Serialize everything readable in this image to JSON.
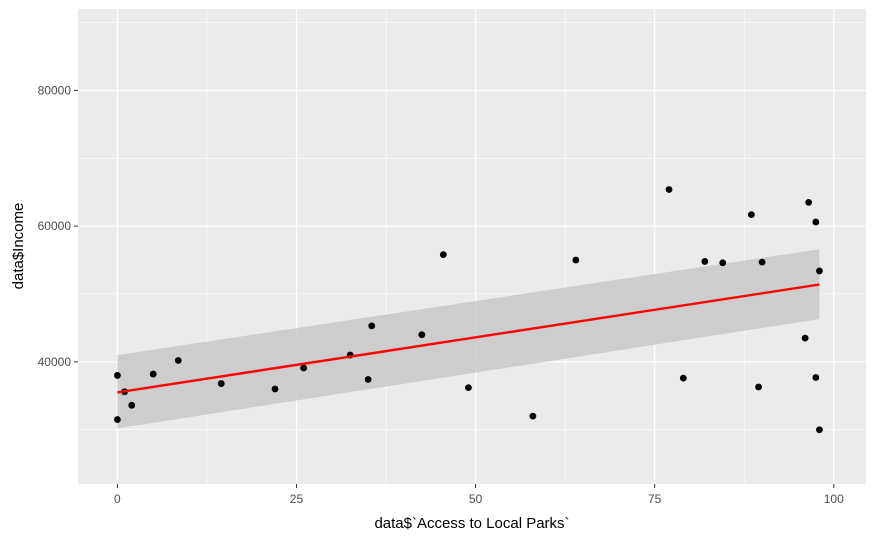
{
  "chart_data": {
    "type": "scatter",
    "xlabel": "data$`Access to Local Parks`",
    "ylabel": "data$Income",
    "xlim": [
      -5.5,
      104.5
    ],
    "ylim": [
      22000,
      92000
    ],
    "x_ticks": [
      0,
      25,
      50,
      75,
      100
    ],
    "x_tick_labels": [
      "0",
      "25",
      "50",
      "75",
      "100"
    ],
    "y_ticks": [
      40000,
      60000,
      80000
    ],
    "y_tick_labels": [
      "40000",
      "60000",
      "80000"
    ],
    "grid": true,
    "series": [
      {
        "points": [
          {
            "x": 0,
            "y": 31500
          },
          {
            "x": 0,
            "y": 38000
          },
          {
            "x": 1,
            "y": 35600
          },
          {
            "x": 2,
            "y": 33600
          },
          {
            "x": 5,
            "y": 38200
          },
          {
            "x": 8.5,
            "y": 40200
          },
          {
            "x": 14.5,
            "y": 36800
          },
          {
            "x": 22,
            "y": 36000
          },
          {
            "x": 26,
            "y": 39100
          },
          {
            "x": 32.5,
            "y": 41000
          },
          {
            "x": 35,
            "y": 37400
          },
          {
            "x": 35.5,
            "y": 45300
          },
          {
            "x": 42.5,
            "y": 44000
          },
          {
            "x": 45.5,
            "y": 55800
          },
          {
            "x": 49,
            "y": 36200
          },
          {
            "x": 58,
            "y": 32000
          },
          {
            "x": 64,
            "y": 55000
          },
          {
            "x": 77,
            "y": 65400
          },
          {
            "x": 79,
            "y": 37600
          },
          {
            "x": 82,
            "y": 54800
          },
          {
            "x": 84.5,
            "y": 54600
          },
          {
            "x": 88.5,
            "y": 61700
          },
          {
            "x": 89.5,
            "y": 36300
          },
          {
            "x": 90,
            "y": 54700
          },
          {
            "x": 96,
            "y": 43500
          },
          {
            "x": 96.5,
            "y": 63500
          },
          {
            "x": 97.5,
            "y": 37700
          },
          {
            "x": 97.5,
            "y": 60600
          },
          {
            "x": 98,
            "y": 30000
          },
          {
            "x": 98,
            "y": 53400
          }
        ]
      }
    ],
    "trend_line": {
      "method": "linear",
      "x": [
        0,
        98
      ],
      "y": [
        35500,
        51400
      ],
      "ci_lower": [
        30200,
        46300
      ],
      "ci_upper": [
        41000,
        56600
      ],
      "color": "#ff0000",
      "band_color": "#c8c8c8"
    },
    "colors": {
      "panel_background": "#ebebeb",
      "grid_major": "#ffffff",
      "point": "#000000"
    }
  }
}
